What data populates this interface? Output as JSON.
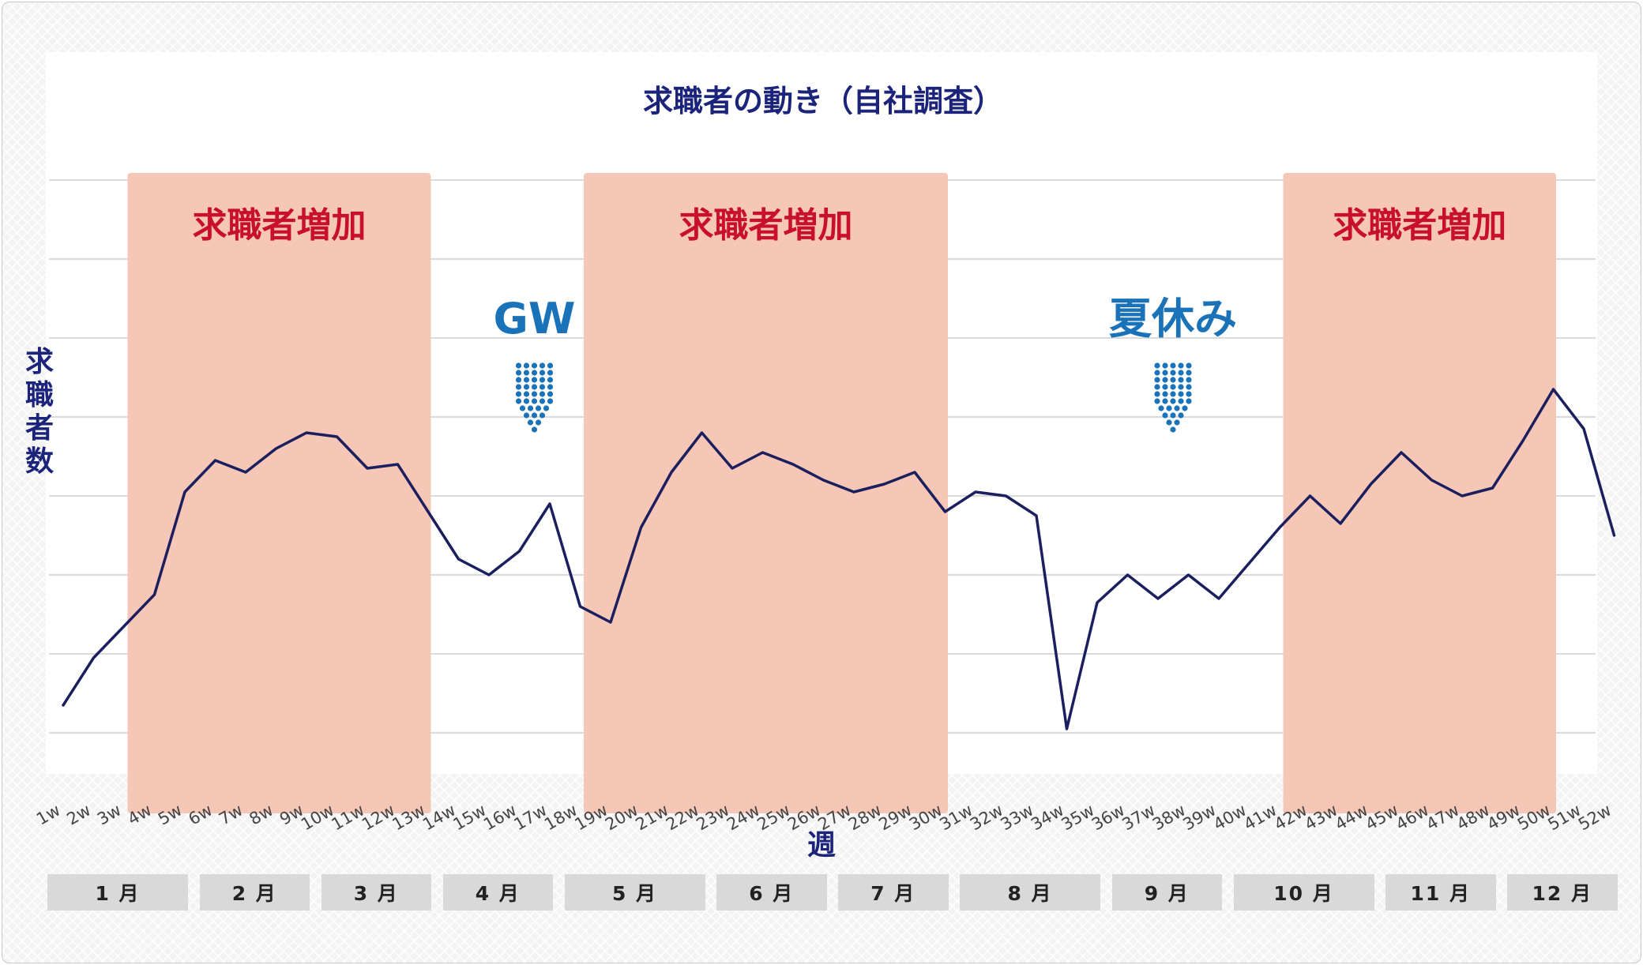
{
  "colors": {
    "line": "#1b1f5e",
    "highlight_band": "#f6c7b6",
    "highlight_text": "#c8102e",
    "annotation_text": "#1a72b8",
    "title_text": "#1b237a",
    "grid": "#cfcfcf",
    "month_cell": "#d9d9d9"
  },
  "chart_data": {
    "type": "line",
    "title": "求職者の動き（自社調査）",
    "xlabel": "週",
    "ylabel": "求職者数",
    "y_tick_labels_shown": false,
    "ylim": [
      0,
      8
    ],
    "grid": "horizontal",
    "categories": [
      "1w",
      "2w",
      "3w",
      "4w",
      "5w",
      "6w",
      "7w",
      "8w",
      "9w",
      "10w",
      "11w",
      "12w",
      "13w",
      "14w",
      "15w",
      "16w",
      "17w",
      "18w",
      "19w",
      "20w",
      "21w",
      "22w",
      "23w",
      "24w",
      "25w",
      "26w",
      "27w",
      "28w",
      "29w",
      "30w",
      "31w",
      "32w",
      "33w",
      "34w",
      "35w",
      "36w",
      "37w",
      "38w",
      "39w",
      "40w",
      "41w",
      "42w",
      "43w",
      "44w",
      "45w",
      "46w",
      "47w",
      "48w",
      "49w",
      "50w",
      "51w",
      "52w"
    ],
    "series": [
      {
        "values": [
          1.35,
          1.95,
          2.35,
          2.75,
          4.05,
          4.45,
          4.3,
          4.6,
          4.8,
          4.75,
          4.35,
          4.4,
          3.8,
          3.2,
          3.0,
          3.3,
          3.9,
          2.6,
          2.4,
          3.6,
          4.3,
          4.8,
          4.35,
          4.55,
          4.4,
          4.2,
          4.05,
          4.15,
          4.3,
          3.8,
          4.05,
          4.0,
          3.75,
          1.05,
          2.65,
          3.0,
          2.7,
          3.0,
          2.7,
          3.15,
          3.6,
          4.0,
          3.65,
          4.15,
          4.55,
          4.2,
          4.0,
          4.1,
          4.7,
          5.35,
          4.85,
          3.5
        ]
      }
    ],
    "highlights": [
      {
        "label": "求職者増加",
        "from": "4w",
        "to": "14w"
      },
      {
        "label": "求職者増加",
        "from": "19w",
        "to": "31w"
      },
      {
        "label": "求職者増加",
        "from": "42w",
        "to": "51w"
      }
    ],
    "annotations": [
      {
        "label": "GW",
        "at": "16w",
        "arrow": "down"
      },
      {
        "label": "夏休み",
        "at": "37w",
        "arrow": "down"
      }
    ],
    "months": [
      {
        "label": "1 月",
        "from_week": 1,
        "to_week": 5
      },
      {
        "label": "2 月",
        "from_week": 6,
        "to_week": 9
      },
      {
        "label": "3 月",
        "from_week": 10,
        "to_week": 13
      },
      {
        "label": "4 月",
        "from_week": 14,
        "to_week": 17
      },
      {
        "label": "5 月",
        "from_week": 18,
        "to_week": 22
      },
      {
        "label": "6 月",
        "from_week": 23,
        "to_week": 26
      },
      {
        "label": "7 月",
        "from_week": 27,
        "to_week": 30
      },
      {
        "label": "8 月",
        "from_week": 31,
        "to_week": 35
      },
      {
        "label": "9 月",
        "from_week": 36,
        "to_week": 39
      },
      {
        "label": "10 月",
        "from_week": 40,
        "to_week": 44
      },
      {
        "label": "11 月",
        "from_week": 45,
        "to_week": 48
      },
      {
        "label": "12 月",
        "from_week": 49,
        "to_week": 52
      }
    ]
  }
}
